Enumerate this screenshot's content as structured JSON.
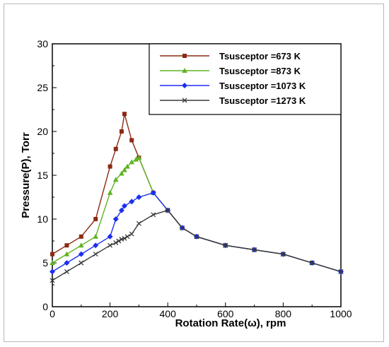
{
  "chart_data": {
    "type": "line",
    "title": "",
    "xlabel": "Rotation Rate(ω), rpm",
    "ylabel": "Pressure(P), Torr",
    "xlim": [
      0,
      1000
    ],
    "ylim": [
      0,
      30
    ],
    "x_ticks": [
      "0",
      "200",
      "400",
      "600",
      "800",
      "1000"
    ],
    "y_ticks": [
      "0",
      "5",
      "10",
      "15",
      "20",
      "25",
      "30"
    ],
    "grid": false,
    "legend_position": "top-right",
    "series": [
      {
        "name": "Tsusceptor =673 K",
        "color": "#8b2a12",
        "marker": "square",
        "x": [
          0,
          50,
          100,
          150,
          200,
          220,
          240,
          250,
          275,
          300,
          350,
          400,
          450,
          500,
          600,
          700,
          800,
          900,
          1000
        ],
        "y": [
          6,
          7,
          8,
          10,
          16,
          18,
          20,
          22,
          19,
          17,
          13,
          11,
          9,
          8,
          7,
          6.5,
          6,
          5,
          4
        ]
      },
      {
        "name": "Tsusceptor =873 K",
        "color": "#5fb322",
        "marker": "triangle",
        "x": [
          0,
          50,
          100,
          150,
          200,
          220,
          240,
          250,
          260,
          275,
          290,
          300,
          350,
          400,
          450,
          500,
          600,
          700,
          800,
          900,
          1000
        ],
        "y": [
          5,
          6,
          7,
          8,
          13,
          14.5,
          15.2,
          15.6,
          16,
          16.5,
          16.8,
          17,
          13,
          11,
          9,
          8,
          7,
          6.5,
          6,
          5,
          4
        ]
      },
      {
        "name": "Tsusceptor =1073 K",
        "color": "#1c2ff0",
        "marker": "diamond",
        "x": [
          0,
          50,
          100,
          150,
          200,
          220,
          240,
          250,
          275,
          300,
          350,
          400,
          450,
          500,
          600,
          700,
          800,
          900,
          1000
        ],
        "y": [
          4,
          5,
          6,
          7,
          8,
          10,
          11,
          11.5,
          12,
          12.5,
          13,
          11,
          9,
          8,
          7,
          6.5,
          6,
          5,
          4
        ]
      },
      {
        "name": "Tsusceptor =1273 K",
        "color": "#3a3a3a",
        "marker": "x",
        "x": [
          0,
          50,
          100,
          150,
          200,
          220,
          230,
          240,
          250,
          260,
          275,
          300,
          350,
          400,
          450,
          500,
          600,
          700,
          800,
          900,
          1000
        ],
        "y": [
          3,
          4,
          5,
          6,
          7,
          7.3,
          7.5,
          7.7,
          7.8,
          8,
          8.3,
          9.5,
          10.5,
          11,
          9,
          8,
          7,
          6.5,
          6,
          5,
          4
        ]
      }
    ]
  }
}
